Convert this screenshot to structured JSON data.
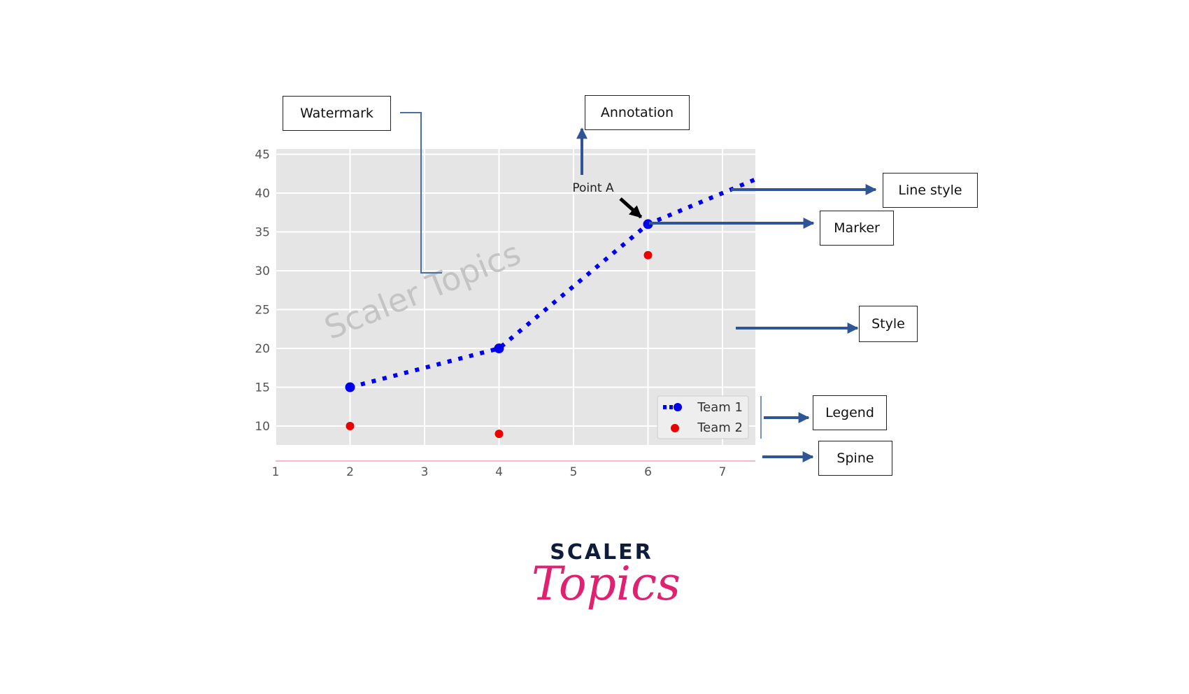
{
  "chart_data": {
    "type": "line",
    "title": "",
    "xlabel": "",
    "ylabel": "",
    "xlim": [
      1,
      7.5
    ],
    "ylim": [
      6,
      45
    ],
    "x_ticks": [
      1,
      2,
      3,
      4,
      5,
      6,
      7
    ],
    "y_ticks": [
      10,
      15,
      20,
      25,
      30,
      35,
      40,
      45
    ],
    "grid": true,
    "style": "ggplot",
    "legend_position": "lower-right",
    "series": [
      {
        "name": "Team 1",
        "kind": "dotted-line-with-markers",
        "color": "#0000ee",
        "x": [
          2,
          4,
          6,
          7.5
        ],
        "y": [
          15,
          20,
          36,
          42
        ],
        "marker_x": [
          2,
          4,
          6
        ]
      },
      {
        "name": "Team 2",
        "kind": "scatter",
        "color": "#ee0000",
        "x": [
          2,
          4,
          6
        ],
        "y": [
          10,
          9,
          32
        ]
      }
    ],
    "annotation": {
      "text": "Point A",
      "x": 6,
      "y": 36
    },
    "watermark": "Scaler Topics"
  },
  "callouts": {
    "watermark": "Watermark",
    "annotation": "Annotation",
    "line_style": "Line style",
    "marker": "Marker",
    "style": "Style",
    "legend": "Legend",
    "spine": "Spine"
  },
  "logo": {
    "line1": "SCALER",
    "line2": "Topics"
  },
  "colors": {
    "plot_bg": "#e5e5e5",
    "grid": "#ffffff",
    "spine": "#f4b8c8",
    "arrow": "#2f5597",
    "logo_dark": "#0f1d3a",
    "logo_pink": "#e0216f"
  }
}
